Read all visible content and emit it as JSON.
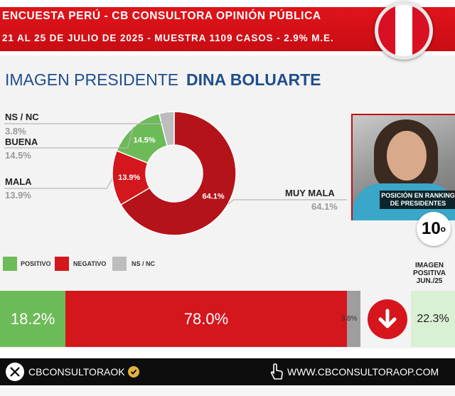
{
  "header": {
    "line1": "ENCUESTA PERÚ - CB CONSULTORA OPINIÓN PÚBLICA",
    "line2": "21 AL 25 DE JULIO DE 2025 - MUESTRA 1109 CASOS - 2.9% M.E.",
    "flag_colors": [
      "#d91023",
      "#ffffff",
      "#d91023"
    ]
  },
  "title": {
    "part1": "IMAGEN PRESIDENTE",
    "part2": "DINA BOLUARTE"
  },
  "chart_data": [
    {
      "type": "pie",
      "title": "",
      "categories": [
        "MUY MALA",
        "MALA",
        "BUENA",
        "NS / NC"
      ],
      "values": [
        64.1,
        13.9,
        14.5,
        3.8
      ],
      "labels": [
        "64.1%",
        "13.9%",
        "14.5%",
        "3.8%"
      ],
      "colors": [
        "#b5131a",
        "#d4161d",
        "#6dbb58",
        "#bdbdbd"
      ]
    },
    {
      "type": "bar",
      "stacked": true,
      "categories": [
        "POSITIVO",
        "NEGATIVO",
        "NS / NC"
      ],
      "values": [
        18.2,
        78.0,
        3.8
      ],
      "labels": [
        "18.2%",
        "78.0%",
        "3.8%"
      ],
      "colors": [
        "#6dbb58",
        "#d4161d",
        "#9e9e9e"
      ]
    }
  ],
  "labels": {
    "nsnc": {
      "name": "NS / NC",
      "pct": "3.8%"
    },
    "buena": {
      "name": "BUENA",
      "pct": "14.5%"
    },
    "mala": {
      "name": "MALA",
      "pct": "13.9%"
    },
    "muymala": {
      "name": "MUY MALA",
      "pct": "64.1%"
    }
  },
  "legend": {
    "positivo": "POSITIVO",
    "negativo": "NEGATIVO",
    "nsnc": "NS / NC",
    "colors": {
      "positivo": "#6dbb58",
      "negativo": "#d4161d",
      "nsnc": "#bdbdbd"
    }
  },
  "photo": {
    "caption_line1": "POSICIÓN EN RANKING",
    "caption_line2": "DE PRESIDENTES"
  },
  "rank": {
    "number": "10",
    "suffix": "o"
  },
  "previous": {
    "line1": "IMAGEN",
    "line2": "POSITIVA",
    "line3": "JUN./25",
    "value": "22.3%",
    "trend_icon": "arrow-down-icon"
  },
  "footer": {
    "social_handle": "CBCONSULTORAOK",
    "website": "WWW.CBCONSULTORAOP.COM"
  }
}
